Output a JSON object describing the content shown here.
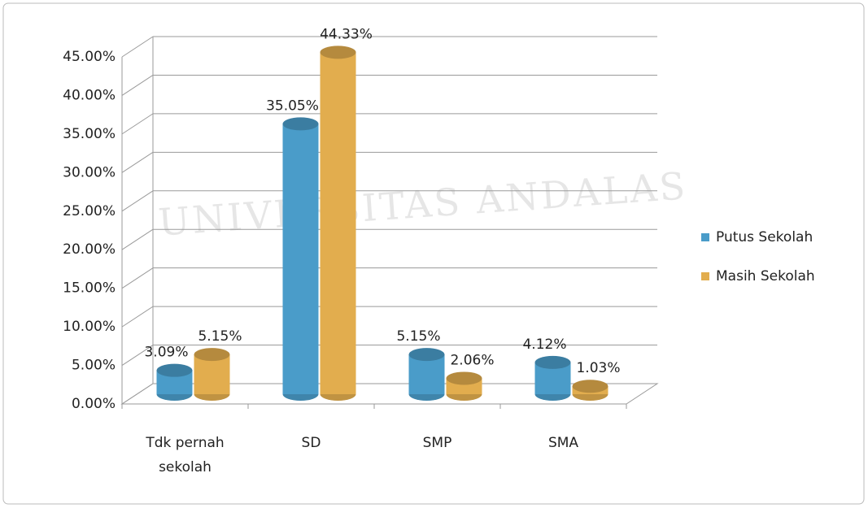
{
  "chart_data": {
    "type": "bar3d",
    "watermark": "UNIVERSITAS ANDALAS",
    "categories": [
      "Tdk pernah sekolah",
      "SD",
      "SMP",
      "SMA"
    ],
    "series": [
      {
        "name": "Putus Sekolah",
        "color": "#4a9cc9",
        "values": [
          3.09,
          35.05,
          5.15,
          4.12
        ],
        "value_labels": [
          "3.09%",
          "35.05%",
          "5.15%",
          "4.12%"
        ]
      },
      {
        "name": "Masih Sekolah",
        "color": "#e2ad4e",
        "values": [
          5.15,
          44.33,
          2.06,
          1.03
        ],
        "value_labels": [
          "5.15%",
          "44.33%",
          "2.06%",
          "1.03%"
        ]
      }
    ],
    "ylim": [
      0,
      45
    ],
    "yticks": [
      {
        "value": 0,
        "label": "0.00%"
      },
      {
        "value": 5,
        "label": "5.00%"
      },
      {
        "value": 10,
        "label": "10.00%"
      },
      {
        "value": 15,
        "label": "15.00%"
      },
      {
        "value": 20,
        "label": "20.00%"
      },
      {
        "value": 25,
        "label": "25.00%"
      },
      {
        "value": 30,
        "label": "30.00%"
      },
      {
        "value": 35,
        "label": "35.00%"
      },
      {
        "value": 40,
        "label": "40.00%"
      },
      {
        "value": 45,
        "label": "45.00%"
      }
    ],
    "grid": true,
    "legend": "right"
  }
}
